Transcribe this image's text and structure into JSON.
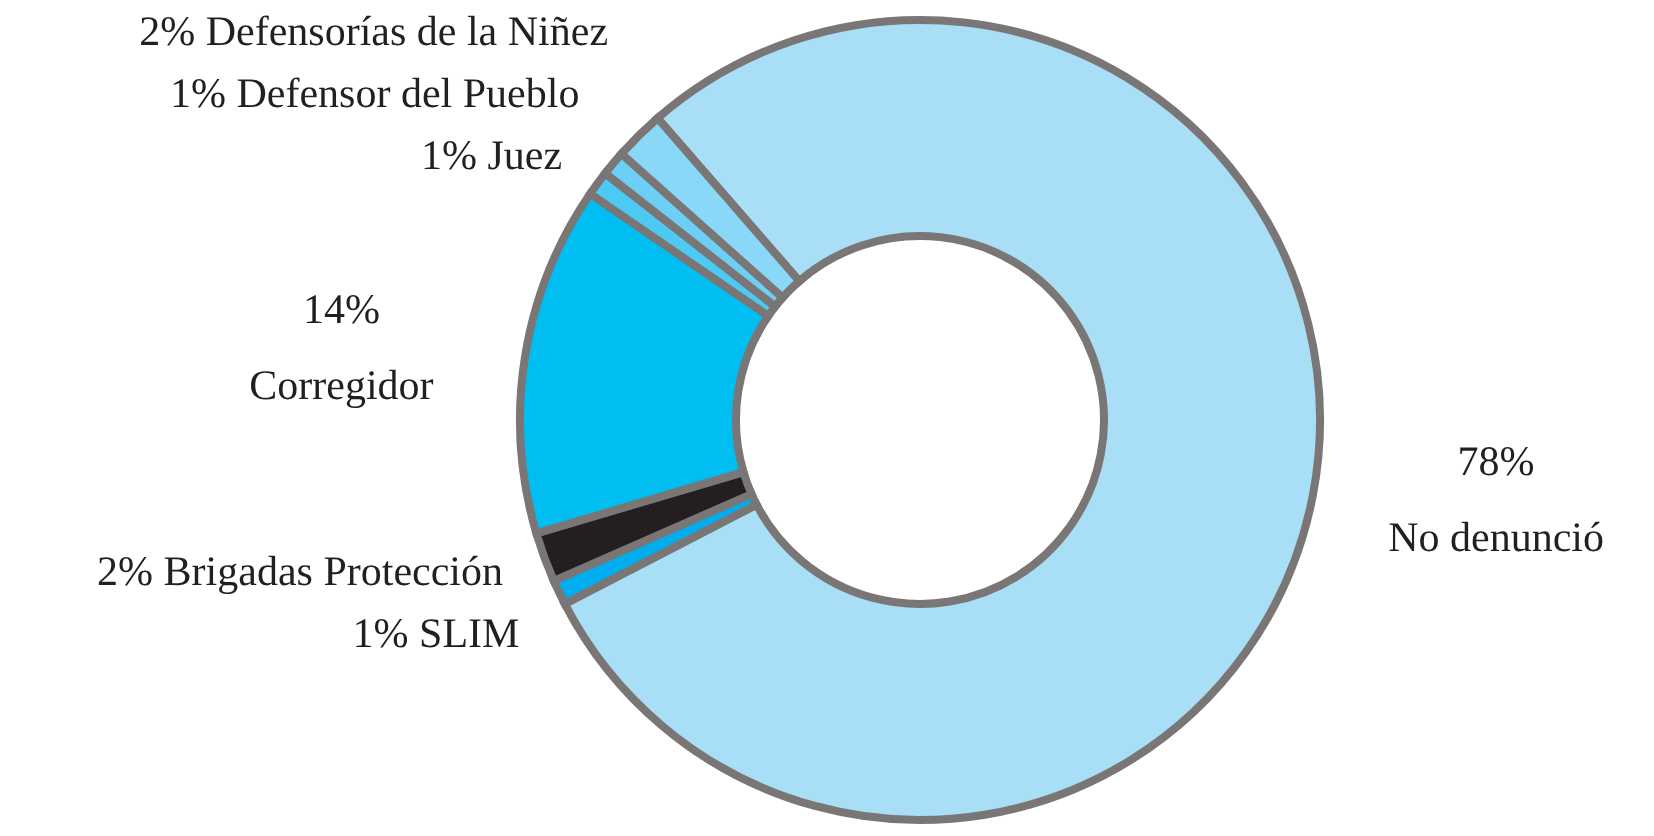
{
  "chart_data": {
    "type": "donut",
    "categories": [
      "No denunció",
      "SLIM",
      "Brigadas Protección",
      "Corregidor",
      "Juez",
      "Defensor del Pueblo",
      "Defensorías de la Niñez"
    ],
    "values": [
      78,
      1,
      2,
      14,
      1,
      1,
      2
    ],
    "colors": [
      "#a8dff7",
      "#00aeef",
      "#231f20",
      "#00bdf2",
      "#4ccaf3",
      "#6dcff6",
      "#8ad8f7"
    ],
    "value_labels": [
      "78%",
      "1%",
      "2%",
      "14%",
      "1%",
      "1%",
      "2%"
    ]
  }
}
